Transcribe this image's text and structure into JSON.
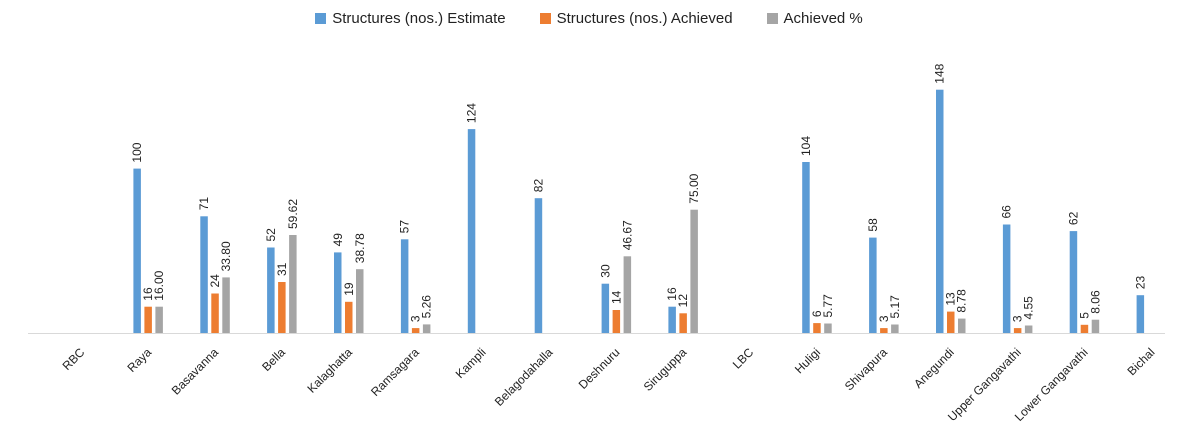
{
  "chart_data": {
    "type": "bar",
    "title": "",
    "xlabel": "",
    "ylabel": "",
    "ylim": [
      0,
      160
    ],
    "grid": false,
    "legend_position": "top-center",
    "categories": [
      "RBC",
      "Raya",
      "Basavanna",
      "Bella",
      "Kalaghatta",
      "Ramsagara",
      "Kampli",
      "Belagodahalla",
      "Deshnuru",
      "Siruguppa",
      "LBC",
      "Huligi",
      "Shivapura",
      "Anegundi",
      "Upper Gangavathi",
      "Lower Gangavathi",
      "Bichal"
    ],
    "series": [
      {
        "name": "Structures (nos.) Estimate",
        "color": "#5b9bd5",
        "values": [
          null,
          100,
          71,
          52,
          49,
          57,
          124,
          82,
          30,
          16,
          null,
          104,
          58,
          148,
          66,
          62,
          23
        ],
        "labels": [
          "",
          "100",
          "71",
          "52",
          "49",
          "57",
          "124",
          "82",
          "30",
          "16",
          "",
          "104",
          "58",
          "148",
          "66",
          "62",
          "23"
        ]
      },
      {
        "name": "Structures (nos.) Achieved",
        "color": "#ed7d31",
        "values": [
          null,
          16,
          24,
          31,
          19,
          3,
          null,
          null,
          14,
          12,
          null,
          6,
          3,
          13,
          3,
          5,
          null
        ],
        "labels": [
          "",
          "16",
          "24",
          "31",
          "19",
          "3",
          "",
          "",
          "14",
          "12",
          "",
          "6",
          "3",
          "13",
          "3",
          "5",
          ""
        ]
      },
      {
        "name": "Achieved %",
        "color": "#a5a5a5",
        "values": [
          null,
          16.0,
          33.8,
          59.62,
          38.78,
          5.26,
          null,
          null,
          46.67,
          75.0,
          null,
          5.77,
          5.17,
          8.78,
          4.55,
          8.06,
          null
        ],
        "labels": [
          "",
          "16.00",
          "33.80",
          "59.62",
          "38.78",
          "5.26",
          "",
          "",
          "46.67",
          "75.00",
          "",
          "5.77",
          "5.17",
          "8.78",
          "4.55",
          "8.06",
          ""
        ]
      }
    ]
  }
}
